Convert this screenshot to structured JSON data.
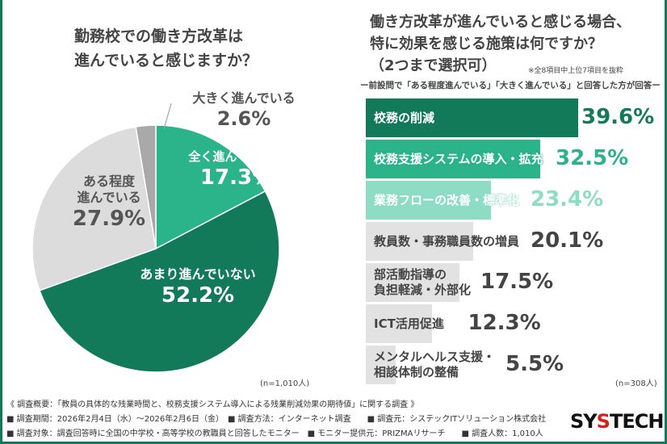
{
  "chart_data": [
    {
      "type": "pie",
      "title": "勤務校での働き方改革は\n進んでいると感じますか？",
      "note": "(n=1,010人)",
      "slices": [
        {
          "label": "全く進んでいない",
          "value": 17.3,
          "display": "17.3%",
          "color": "#2bb38a"
        },
        {
          "label": "あまり進んでいない",
          "value": 52.2,
          "display": "52.2%",
          "color": "#137a59"
        },
        {
          "label": "ある程度\n進んでいる",
          "value": 27.9,
          "display": "27.9%",
          "color": "#dcdcdc"
        },
        {
          "label": "大きく進んでいる",
          "value": 2.6,
          "display": "2.6%",
          "color": "#a9a9a9"
        }
      ]
    },
    {
      "type": "bar",
      "orientation": "horizontal",
      "title": "働き方改革が進んでいると感じる場合、\n特に効果を感じる施策は何ですか？\n（2つまで選択可）",
      "note_top": "※全8項目中上位7項目を抜粋",
      "subtitle": "ー前設問で「ある程度進んでいる」「大きく進んでいる」と回答した方が回答ー",
      "note": "(n=308人)",
      "categories": [
        "校務の削減",
        "校務支援システムの導入・拡充",
        "業務フローの改善・標準化",
        "教員数・事務職員数の増員",
        "部活動指導の\n負担軽減・外部化",
        "ICT活用促進",
        "メンタルヘルス支援・\n相談体制の整備"
      ],
      "values": [
        39.6,
        32.5,
        23.4,
        20.1,
        17.5,
        12.3,
        5.5
      ],
      "display": [
        "39.6%",
        "32.5%",
        "23.4%",
        "20.1%",
        "17.5%",
        "12.3%",
        "5.5%"
      ],
      "bar_colors": [
        "#137a59",
        "#2bb38a",
        "#8edcc3",
        "#e2e2e2",
        "#e2e2e2",
        "#e2e2e2",
        "#e2e2e2"
      ],
      "value_colors": [
        "#137a59",
        "#2bb38a",
        "#8edcc3",
        "#444444",
        "#444444",
        "#444444",
        "#444444"
      ],
      "label_colors": [
        "#ffffff",
        "#ffffff",
        "#ffffff",
        "#444444",
        "#444444",
        "#444444",
        "#444444"
      ]
    }
  ],
  "footer": {
    "line1": "《 調査概要：「教員の具体的な残業時間と、校務支援システム導入による残業削減効果の期待値」に関する調査 》",
    "line2": "■ 調査期間：2026年2月4日（水）～2026年2月6日（金）　■ 調査方法：インターネット調査　　■ 調査元：システックITソリューション株式会社",
    "line3": "■ 調査対象：調査回答時に全国の中学校・高等学校の教職員と回答したモニター　■ モニター提供元：PRIZMAリサーチ　　■ 調査人数：1,010人"
  },
  "logo": "SYSTECH"
}
